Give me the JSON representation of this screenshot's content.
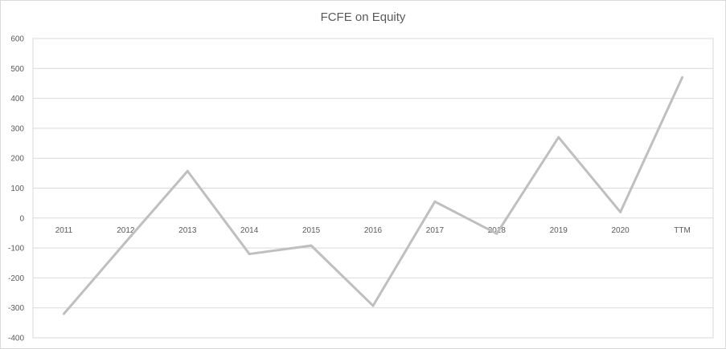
{
  "chart_data": {
    "type": "line",
    "title": "FCFE on Equity",
    "xlabel": "",
    "ylabel": "",
    "categories": [
      "2011",
      "2012",
      "2013",
      "2014",
      "2015",
      "2016",
      "2017",
      "2018",
      "2019",
      "2020",
      "TTM"
    ],
    "series": [
      {
        "values": [
          -320,
          -80,
          157,
          -120,
          -92,
          -293,
          55,
          -52,
          270,
          20,
          470
        ]
      }
    ],
    "ylim": [
      -400,
      600
    ],
    "yticks": [
      "-400",
      "-300",
      "-200",
      "-100",
      "0",
      "100",
      "200",
      "300",
      "400",
      "500",
      "600"
    ],
    "grid": true,
    "legend": "none",
    "line_color": "#bfbfbf",
    "grid_color": "#d9d9d9",
    "text_color": "#595959"
  }
}
